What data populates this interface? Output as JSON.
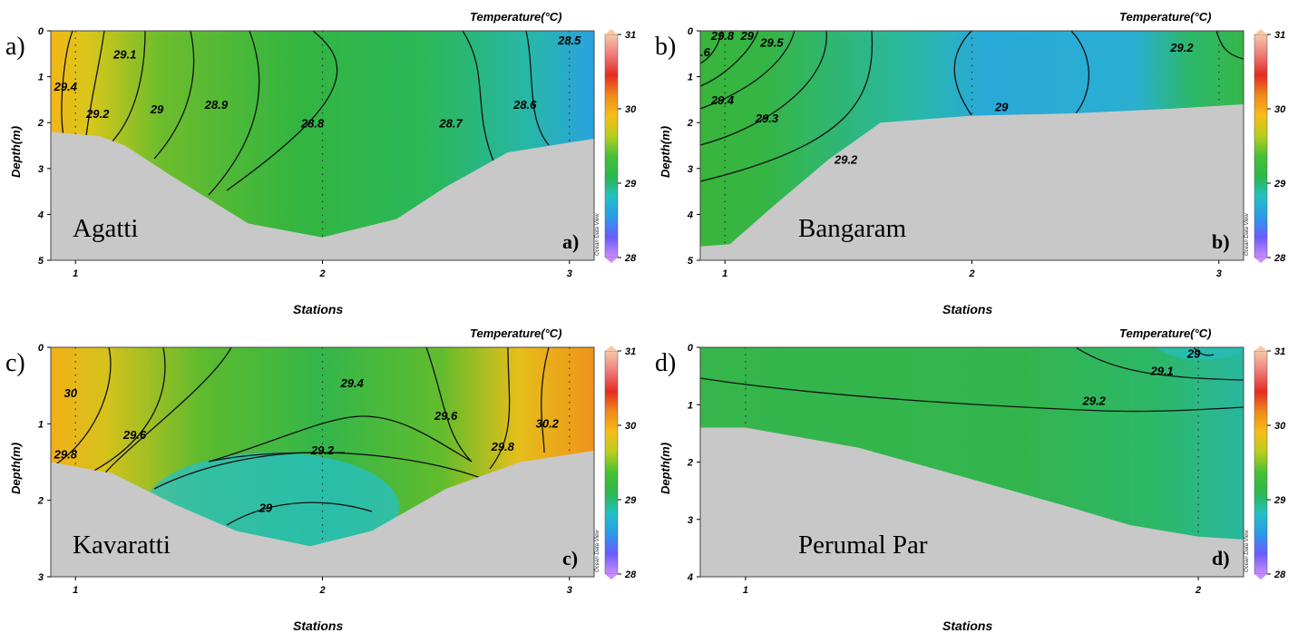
{
  "colorbar": {
    "ticks": [
      31,
      30,
      29,
      28
    ],
    "colors": [
      "#c98cff",
      "#6a5cff",
      "#2a9bea",
      "#22c1c5",
      "#2bb84c",
      "#47c036",
      "#b7cf1d",
      "#f6bd16",
      "#f08a1a",
      "#e52b20",
      "#f07a7a",
      "#f6caa8"
    ]
  },
  "chart_data": [
    {
      "type": "contour",
      "panel_label": "a)",
      "site": "Agatti",
      "corner_label": "a)",
      "title": "Temperature(°C)",
      "xlabel": "Stations",
      "ylabel": "Depth(m)",
      "x_ticks": [
        "1",
        "2",
        "3"
      ],
      "y_ticks": [
        "0",
        "1",
        "2",
        "3",
        "4",
        "5"
      ],
      "xlim": [
        0.9,
        3.1
      ],
      "ylim": [
        5,
        0
      ],
      "colorbar_range": [
        28,
        31
      ],
      "watermark": "Ocean Data View",
      "stations": [
        1,
        2,
        3
      ],
      "bottom_depth": [
        [
          0.9,
          2.2
        ],
        [
          1.1,
          2.3
        ],
        [
          1.2,
          2.5
        ],
        [
          1.4,
          3.2
        ],
        [
          1.7,
          4.2
        ],
        [
          2.0,
          4.5
        ],
        [
          2.3,
          4.1
        ],
        [
          2.5,
          3.4
        ],
        [
          2.75,
          2.65
        ],
        [
          3.1,
          2.35
        ]
      ],
      "contour_labels": [
        {
          "label": "29.4",
          "x": 0.96,
          "y": 1.3
        },
        {
          "label": "29.2",
          "x": 1.09,
          "y": 1.9
        },
        {
          "label": "29.1",
          "x": 1.2,
          "y": 0.6
        },
        {
          "label": "29",
          "x": 1.33,
          "y": 1.8
        },
        {
          "label": "28.9",
          "x": 1.57,
          "y": 1.7
        },
        {
          "label": "28.8",
          "x": 1.96,
          "y": 2.1
        },
        {
          "label": "28.7",
          "x": 2.52,
          "y": 2.1
        },
        {
          "label": "28.6",
          "x": 2.82,
          "y": 1.7
        },
        {
          "label": "28.5",
          "x": 3.0,
          "y": 0.3
        }
      ]
    },
    {
      "type": "contour",
      "panel_label": "b)",
      "site": "Bangaram",
      "corner_label": "b)",
      "title": "Temperature(°C)",
      "xlabel": "Stations",
      "ylabel": "Depth(m)",
      "x_ticks": [
        "1",
        "2",
        "3"
      ],
      "y_ticks": [
        "0",
        "1",
        "2",
        "3",
        "4",
        "5"
      ],
      "xlim": [
        0.9,
        3.1
      ],
      "ylim": [
        5,
        0
      ],
      "colorbar_range": [
        28,
        31
      ],
      "watermark": "Ocean Data View",
      "stations": [
        1,
        2,
        3
      ],
      "bottom_depth": [
        [
          0.9,
          4.7
        ],
        [
          1.02,
          4.65
        ],
        [
          1.2,
          3.8
        ],
        [
          1.42,
          2.8
        ],
        [
          1.63,
          2.0
        ],
        [
          2.0,
          1.85
        ],
        [
          2.4,
          1.8
        ],
        [
          2.8,
          1.7
        ],
        [
          3.1,
          1.6
        ]
      ],
      "contour_labels": [
        {
          "label": "29.8",
          "x": 0.99,
          "y": 0.2
        },
        {
          "label": "29",
          "x": 1.09,
          "y": 0.2
        },
        {
          "label": "29.5",
          "x": 1.19,
          "y": 0.35
        },
        {
          "label": ".6",
          "x": 0.92,
          "y": 0.55
        },
        {
          "label": "29.4",
          "x": 0.99,
          "y": 1.6
        },
        {
          "label": "29.3",
          "x": 1.17,
          "y": 2.0
        },
        {
          "label": "29.2",
          "x": 1.49,
          "y": 2.9
        },
        {
          "label": "29",
          "x": 2.12,
          "y": 1.75
        },
        {
          "label": "29.2",
          "x": 2.85,
          "y": 0.45
        }
      ]
    },
    {
      "type": "contour",
      "panel_label": "c)",
      "site": "Kavaratti",
      "corner_label": "c)",
      "title": "Temperature(°C)",
      "xlabel": "Stations",
      "ylabel": "Depth(m)",
      "x_ticks": [
        "1",
        "2",
        "3"
      ],
      "y_ticks": [
        "0",
        "1",
        "2",
        "3"
      ],
      "xlim": [
        0.9,
        3.1
      ],
      "ylim": [
        3,
        0
      ],
      "colorbar_range": [
        28,
        31
      ],
      "watermark": "Ocean Data View",
      "stations": [
        1,
        2,
        3
      ],
      "bottom_depth": [
        [
          0.9,
          1.5
        ],
        [
          1.15,
          1.65
        ],
        [
          1.4,
          2.05
        ],
        [
          1.65,
          2.4
        ],
        [
          1.95,
          2.6
        ],
        [
          2.2,
          2.4
        ],
        [
          2.5,
          1.85
        ],
        [
          2.8,
          1.5
        ],
        [
          3.1,
          1.35
        ]
      ],
      "contour_labels": [
        {
          "label": "30",
          "x": 0.98,
          "y": 0.65
        },
        {
          "label": "29.8",
          "x": 0.96,
          "y": 1.45
        },
        {
          "label": "29.6",
          "x": 1.24,
          "y": 1.2
        },
        {
          "label": "29.4",
          "x": 2.12,
          "y": 0.52
        },
        {
          "label": "29.2",
          "x": 2.0,
          "y": 1.4
        },
        {
          "label": "29",
          "x": 1.77,
          "y": 2.15
        },
        {
          "label": "29.6",
          "x": 2.5,
          "y": 0.95
        },
        {
          "label": "29.8",
          "x": 2.73,
          "y": 1.35
        },
        {
          "label": "30.2",
          "x": 2.91,
          "y": 1.05
        }
      ]
    },
    {
      "type": "contour",
      "panel_label": "d)",
      "site": "Perumal Par",
      "corner_label": "d)",
      "title": "Temperature(°C)",
      "xlabel": "Stations",
      "ylabel": "Depth(m)",
      "x_ticks": [
        "1",
        "2"
      ],
      "y_ticks": [
        "0",
        "1",
        "2",
        "3",
        "4"
      ],
      "xlim": [
        0.9,
        2.1
      ],
      "ylim": [
        4,
        0
      ],
      "colorbar_range": [
        28,
        31
      ],
      "watermark": "Ocean Data View",
      "stations": [
        1,
        2
      ],
      "bottom_depth": [
        [
          0.9,
          1.4
        ],
        [
          1.0,
          1.4
        ],
        [
          1.25,
          1.75
        ],
        [
          1.5,
          2.3
        ],
        [
          1.7,
          2.75
        ],
        [
          1.85,
          3.1
        ],
        [
          2.0,
          3.3
        ],
        [
          2.1,
          3.35
        ]
      ],
      "contour_labels": [
        {
          "label": "29",
          "x": 1.99,
          "y": 0.18
        },
        {
          "label": "29.1",
          "x": 1.92,
          "y": 0.48
        },
        {
          "label": "29.2",
          "x": 1.77,
          "y": 1.0
        }
      ]
    }
  ]
}
